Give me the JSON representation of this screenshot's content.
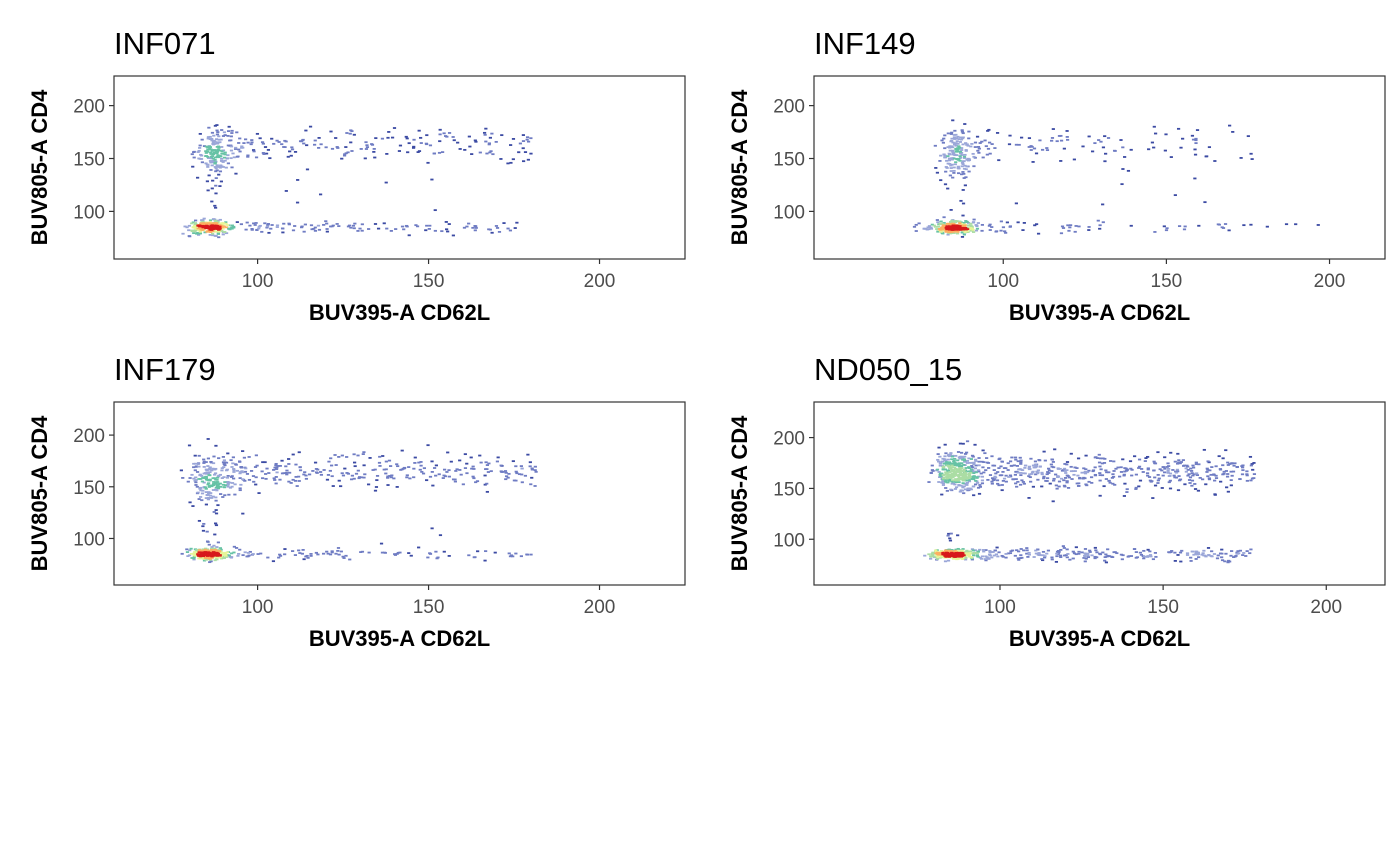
{
  "figure": {
    "colorscale": [
      "#3b4aa3",
      "#6f7cc3",
      "#9aa6d8",
      "#66c2a5",
      "#abdda4",
      "#e6f598",
      "#fdae61",
      "#d7191c"
    ],
    "frame_color": "#333333"
  },
  "chart_data": [
    {
      "type": "scatter",
      "title": "INF071",
      "xlabel": "BUV395-A CD62L",
      "ylabel": "BUV805-A CD4",
      "xlim": [
        58,
        225
      ],
      "ylim": [
        55,
        228
      ],
      "xticks": [
        100,
        150,
        200
      ],
      "yticks": [
        100,
        150,
        200
      ],
      "grid": false,
      "clusters": [
        {
          "name": "low-CD62L-low-CD4",
          "center": [
            86,
            85
          ],
          "spread": [
            3,
            3
          ],
          "count": 280
        },
        {
          "name": "low-CD62L-high-CD4",
          "center": [
            88,
            157
          ],
          "spread": [
            3,
            11
          ],
          "count": 170
        },
        {
          "name": "high-CD4-tail",
          "x_range": [
            92,
            180
          ],
          "center_y": 163,
          "spread_y": 8,
          "count": 170
        },
        {
          "name": "low-CD4-tail",
          "x_range": [
            92,
            176
          ],
          "center_y": 85,
          "spread_y": 3,
          "count": 110
        },
        {
          "name": "bridge",
          "x_range": [
            85,
            90
          ],
          "y_range": [
            95,
            140
          ],
          "count": 10
        },
        {
          "name": "scattered",
          "x_range": [
            100,
            155
          ],
          "y_range": [
            100,
            150
          ],
          "count": 8
        }
      ]
    },
    {
      "type": "scatter",
      "title": "INF149",
      "xlabel": "BUV395-A CD62L",
      "ylabel": "BUV805-A CD4",
      "xlim": [
        42,
        217
      ],
      "ylim": [
        55,
        228
      ],
      "xticks": [
        100,
        150,
        200
      ],
      "yticks": [
        100,
        150,
        200
      ],
      "grid": false,
      "clusters": [
        {
          "name": "low-CD62L-low-CD4",
          "center": [
            85,
            85
          ],
          "spread": [
            3,
            3
          ],
          "count": 260
        },
        {
          "name": "low-CD62L-high-CD4",
          "center": [
            86,
            155
          ],
          "spread": [
            2.5,
            12
          ],
          "count": 160
        },
        {
          "name": "high-CD4-tail",
          "x_range": [
            92,
            178
          ],
          "center_y": 163,
          "spread_y": 9,
          "count": 95
        },
        {
          "name": "low-CD4-tail",
          "x_range": [
            72,
            197
          ],
          "center_y": 85,
          "spread_y": 3,
          "count": 80
        },
        {
          "name": "bridge",
          "x_range": [
            84,
            89
          ],
          "y_range": [
            95,
            140
          ],
          "count": 10
        },
        {
          "name": "scattered",
          "x_range": [
            100,
            162
          ],
          "y_range": [
            100,
            145
          ],
          "count": 8
        }
      ]
    },
    {
      "type": "scatter",
      "title": "INF179",
      "xlabel": "BUV395-A CD62L",
      "ylabel": "BUV805-A CD4",
      "xlim": [
        58,
        225
      ],
      "ylim": [
        55,
        232
      ],
      "xticks": [
        100,
        150,
        200
      ],
      "yticks": [
        100,
        150,
        200
      ],
      "grid": false,
      "clusters": [
        {
          "name": "low-CD62L-low-CD4",
          "center": [
            86,
            85
          ],
          "spread": [
            3,
            3
          ],
          "count": 260
        },
        {
          "name": "low-CD62L-high-CD4",
          "center": [
            86,
            155
          ],
          "spread": [
            3,
            13
          ],
          "count": 170
        },
        {
          "name": "high-CD4-tail",
          "x_range": [
            90,
            182
          ],
          "center_y": 165,
          "spread_y": 9,
          "count": 300
        },
        {
          "name": "low-CD4-tail",
          "x_range": [
            92,
            182
          ],
          "center_y": 85,
          "spread_y": 3,
          "count": 90
        },
        {
          "name": "bridge",
          "x_range": [
            84,
            89
          ],
          "y_range": [
            95,
            140
          ],
          "count": 15
        },
        {
          "name": "scattered",
          "x_range": [
            140,
            155
          ],
          "y_range": [
            100,
            110
          ],
          "count": 2
        }
      ]
    },
    {
      "type": "scatter",
      "title": "ND050_15",
      "xlabel": "BUV395-A CD62L",
      "ylabel": "BUV805-A CD4",
      "xlim": [
        43,
        218
      ],
      "ylim": [
        55,
        235
      ],
      "xticks": [
        100,
        150,
        200
      ],
      "yticks": [
        100,
        150,
        200
      ],
      "grid": false,
      "clusters": [
        {
          "name": "low-CD62L-low-CD4",
          "center": [
            85,
            85
          ],
          "spread": [
            3,
            2.5
          ],
          "count": 260
        },
        {
          "name": "low-CD62L-high-CD4",
          "center": [
            86,
            168
          ],
          "spread": [
            3,
            9
          ],
          "count": 300
        },
        {
          "name": "high-CD4-tail",
          "x_range": [
            88,
            178
          ],
          "center_y": 166,
          "spread_y": 9,
          "count": 520
        },
        {
          "name": "low-CD4-tail",
          "x_range": [
            88,
            178
          ],
          "center_y": 85,
          "spread_y": 3,
          "count": 260
        },
        {
          "name": "bridge",
          "x_range": [
            84,
            88
          ],
          "y_range": [
            95,
            110
          ],
          "count": 6
        }
      ]
    }
  ]
}
